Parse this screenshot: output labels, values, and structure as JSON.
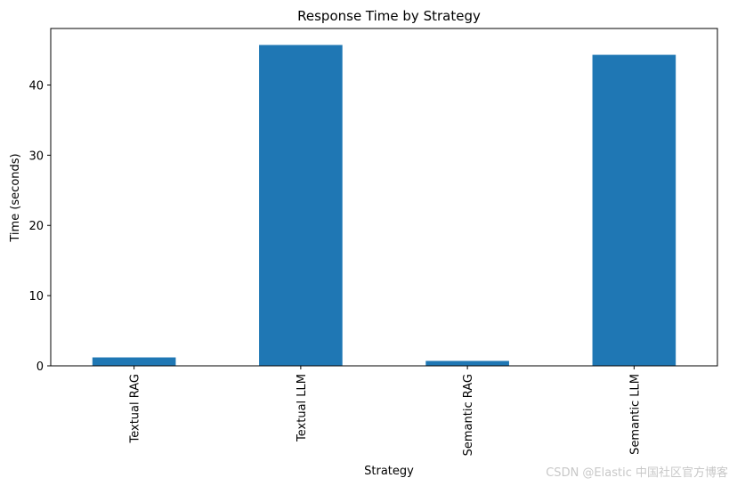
{
  "chart_data": {
    "type": "bar",
    "title": "Response Time by Strategy",
    "xlabel": "Strategy",
    "ylabel": "Time (seconds)",
    "categories": [
      "Textual RAG",
      "Textual LLM",
      "Semantic RAG",
      "Semantic LLM"
    ],
    "values": [
      1.2,
      45.7,
      0.7,
      44.3
    ],
    "ylim": [
      0,
      48.05
    ],
    "yticks": [
      0,
      10,
      20,
      30,
      40
    ],
    "grid": false,
    "legend": "none",
    "bar_color": "#1f77b4"
  },
  "watermark": "CSDN @Elastic 中国社区官方博客"
}
